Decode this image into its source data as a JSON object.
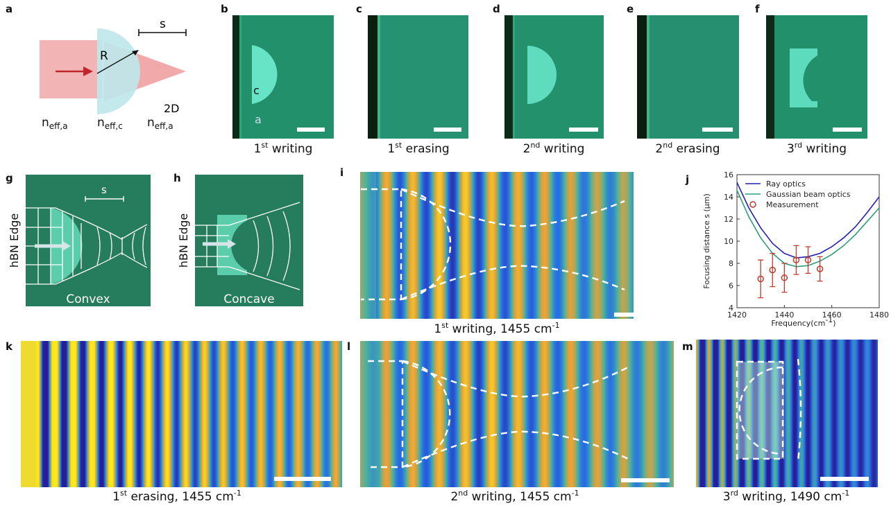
{
  "panels": {
    "a": {
      "label": "a",
      "radius": "R",
      "s": "s",
      "dim": "2D",
      "n_labels": [
        {
          "base": "n",
          "sub": "eff,a"
        },
        {
          "base": "n",
          "sub": "eff,c"
        },
        {
          "base": "n",
          "sub": "eff,a"
        }
      ]
    },
    "b": {
      "label": "b",
      "region_labels": [
        "c",
        "a"
      ],
      "caption": {
        "num": "1",
        "sup": "st",
        "text": " writing"
      }
    },
    "c": {
      "label": "c",
      "caption": {
        "num": "1",
        "sup": "st",
        "text": " erasing"
      }
    },
    "d": {
      "label": "d",
      "caption": {
        "num": "2",
        "sup": "nd",
        "text": " writing"
      }
    },
    "e": {
      "label": "e",
      "caption": {
        "num": "2",
        "sup": "nd",
        "text": " erasing"
      }
    },
    "f": {
      "label": "f",
      "caption": {
        "num": "3",
        "sup": "rd",
        "text": " writing"
      }
    },
    "g": {
      "label": "g",
      "edge": "hBN Edge",
      "s": "s",
      "name": "Convex"
    },
    "h": {
      "label": "h",
      "edge": "hBN Edge",
      "name": "Concave"
    },
    "i": {
      "label": "i",
      "caption": {
        "num": "1",
        "sup": "st",
        "text": " writing, 1455 cm",
        "sup2": "-1"
      }
    },
    "j": {
      "label": "j"
    },
    "k": {
      "label": "k",
      "caption": {
        "num": "1",
        "sup": "st",
        "text": " erasing, 1455 cm",
        "sup2": "-1"
      }
    },
    "l": {
      "label": "l",
      "caption": {
        "num": "2",
        "sup": "nd",
        "text": " writing, 1455 cm",
        "sup2": "-1"
      }
    },
    "m": {
      "label": "m",
      "caption": {
        "num": "3",
        "sup": "rd",
        "text": " writing, 1490 cm",
        "sup2": "-1"
      }
    }
  },
  "chart_data": {
    "type": "line",
    "xlabel": {
      "text": "Frequency(cm",
      "sup": "-1",
      "end": ")"
    },
    "ylabel": "Focusing distance s (μm)",
    "xlim": [
      1420,
      1480
    ],
    "xticks": [
      1420,
      1440,
      1460,
      1480
    ],
    "ylim": [
      4,
      16
    ],
    "yticks": [
      4,
      6,
      8,
      10,
      12,
      14,
      16
    ],
    "legend": "upper left",
    "series": [
      {
        "name": "Ray optics",
        "color": "#1f1fb4",
        "x": [
          1420,
          1425,
          1430,
          1435,
          1440,
          1445,
          1450,
          1455,
          1460,
          1465,
          1470,
          1475,
          1480
        ],
        "values": [
          15.3,
          13.0,
          11.2,
          9.8,
          8.9,
          8.5,
          8.6,
          8.9,
          9.5,
          10.3,
          11.3,
          12.6,
          14.0
        ]
      },
      {
        "name": "Gaussian beam optics",
        "color": "#2a9d7a",
        "x": [
          1420,
          1425,
          1430,
          1435,
          1440,
          1445,
          1450,
          1455,
          1460,
          1465,
          1470,
          1475,
          1480
        ],
        "values": [
          14.6,
          12.2,
          10.3,
          8.9,
          8.0,
          7.7,
          7.8,
          8.2,
          8.8,
          9.6,
          10.6,
          11.8,
          13.0
        ]
      },
      {
        "name": "Measurement",
        "color": "#c0392b",
        "type": "errorbar",
        "x": [
          1430,
          1435,
          1440,
          1445,
          1450,
          1455
        ],
        "values": [
          6.6,
          7.4,
          6.7,
          8.3,
          8.3,
          7.5
        ],
        "errors": [
          1.7,
          1.5,
          1.3,
          1.3,
          1.2,
          1.1
        ]
      }
    ]
  }
}
